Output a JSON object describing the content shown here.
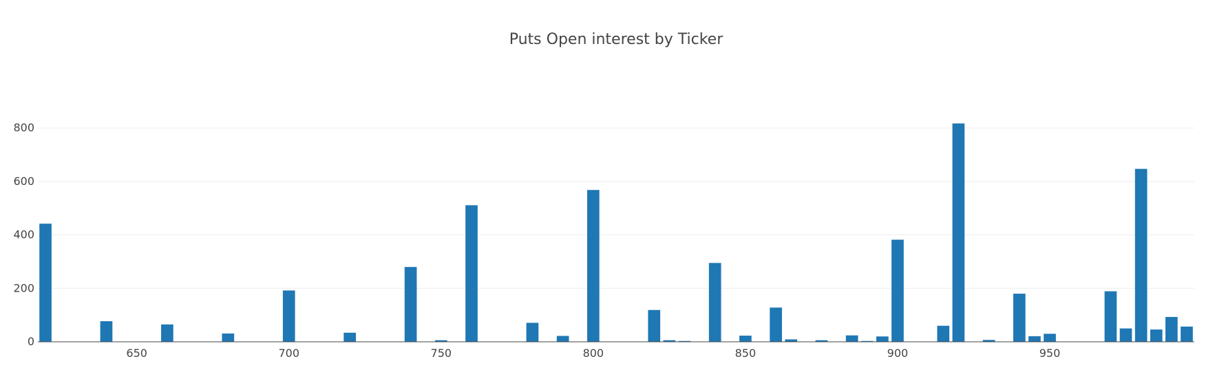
{
  "chart_data": {
    "type": "bar",
    "title": "Puts Open interest by Ticker",
    "xlabel": "",
    "ylabel": "",
    "xlim": [
      617.5,
      997.5
    ],
    "ylim": [
      0,
      880
    ],
    "x_ticks": [
      650,
      700,
      750,
      800,
      850,
      900,
      950
    ],
    "y_ticks": [
      0,
      200,
      400,
      600,
      800
    ],
    "bar_width": 4,
    "grid": true,
    "legend": "none",
    "color": "#1f77b4",
    "x": [
      620,
      640,
      660,
      680,
      700,
      720,
      740,
      750,
      760,
      780,
      790,
      800,
      820,
      825,
      830,
      840,
      850,
      860,
      865,
      875,
      885,
      890,
      895,
      900,
      915,
      920,
      930,
      940,
      945,
      950,
      970,
      975,
      980,
      985,
      990,
      995
    ],
    "values": [
      442,
      77,
      65,
      31,
      192,
      34,
      280,
      6,
      511,
      71,
      22,
      568,
      119,
      6,
      3,
      295,
      23,
      128,
      9,
      6,
      24,
      3,
      20,
      382,
      60,
      817,
      7,
      180,
      21,
      30,
      189,
      50,
      647,
      46,
      93,
      57
    ]
  }
}
